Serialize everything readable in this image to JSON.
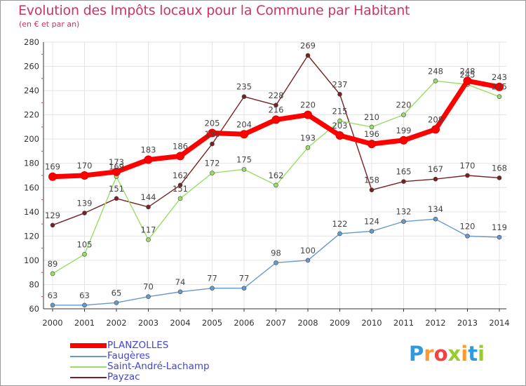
{
  "header": {
    "title": "Evolution des Impôts locaux pour la Commune par Habitant",
    "subtitle": "(en € et par an)"
  },
  "logo": {
    "letters": [
      "P",
      "r",
      "o",
      "x",
      "i",
      "t",
      "i"
    ],
    "colors": [
      "#3399dd",
      "#ff9933",
      "#ee4444",
      "#99cc33",
      "#ff9933",
      "#3399dd",
      "#99cc33"
    ]
  },
  "chart_data": {
    "type": "line",
    "title": "Evolution des Impôts locaux pour la Commune par Habitant",
    "subtitle": "(en € et par an)",
    "xlabel": "",
    "ylabel": "",
    "x": [
      "2000",
      "2001",
      "2002",
      "2003",
      "2004",
      "2005",
      "2006",
      "2007",
      "2008",
      "2009",
      "2010",
      "2011",
      "2012",
      "2013",
      "2014"
    ],
    "y_ticks": [
      "60",
      "80",
      "100",
      "120",
      "140",
      "160",
      "180",
      "200",
      "220",
      "240",
      "260",
      "280"
    ],
    "ylim": [
      60,
      280
    ],
    "grid": true,
    "series": [
      {
        "name": "PLANZOLLES",
        "color": "#ff0000",
        "values": [
          169,
          170,
          173,
          183,
          186,
          205,
          204,
          216,
          220,
          203,
          196,
          199,
          208,
          248,
          243
        ]
      },
      {
        "name": "Faugères",
        "color": "#6699cc",
        "values": [
          63,
          63,
          65,
          70,
          74,
          77,
          77,
          98,
          100,
          122,
          124,
          132,
          134,
          120,
          119
        ]
      },
      {
        "name": "Saint-André-Lachamp",
        "color": "#99dd66",
        "values": [
          89,
          105,
          169,
          117,
          151,
          172,
          175,
          162,
          193,
          215,
          210,
          220,
          248,
          245,
          235
        ]
      },
      {
        "name": "Payzac",
        "color": "#772222",
        "values": [
          129,
          139,
          151,
          144,
          162,
          196,
          235,
          228,
          269,
          237,
          158,
          165,
          167,
          170,
          168
        ]
      }
    ]
  }
}
